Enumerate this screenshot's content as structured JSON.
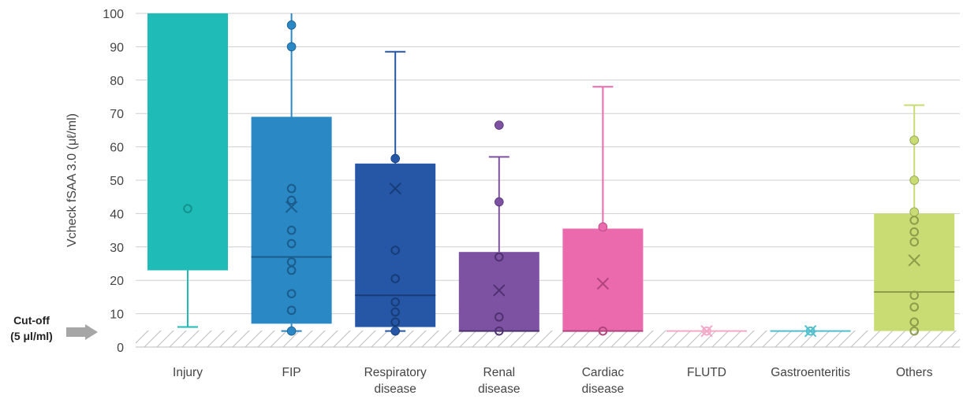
{
  "chart_data": {
    "type": "box",
    "ylabel": "Vcheck fSAA 3.0 (μℓ/ml)",
    "ylim": [
      0,
      100
    ],
    "yticks": [
      0,
      10,
      20,
      30,
      40,
      50,
      60,
      70,
      80,
      90,
      100
    ],
    "grid": true,
    "cutoff": {
      "value": 5,
      "label_line1": "Cut-off",
      "label_line2": "(5 μl/ml)",
      "arrow_color": "#a6a6a6"
    },
    "categories": [
      {
        "label": [
          "Injury"
        ],
        "color": "#1fbbb6",
        "median_color": "#13918d",
        "whisker_low": 6,
        "q1": 23,
        "median": null,
        "q3": 100,
        "whisker_high": null,
        "mean": null,
        "inner_points": [
          41.5
        ],
        "outliers": []
      },
      {
        "label": [
          "FIP"
        ],
        "color": "#2a88c4",
        "median_color": "#1a5c8c",
        "whisker_low": 4.8,
        "q1": 7,
        "median": 27,
        "q3": 69,
        "whisker_high": 100,
        "mean": 42,
        "inner_points": [
          47.5,
          44,
          35,
          31,
          25.5,
          23,
          16,
          11
        ],
        "outliers": [
          96.5,
          90,
          4.8
        ]
      },
      {
        "label": [
          "Respiratory",
          "disease"
        ],
        "color": "#2657a6",
        "median_color": "#173c78",
        "whisker_low": 4.8,
        "q1": 6,
        "median": 15.5,
        "q3": 55,
        "whisker_high": 88.5,
        "mean": 47.5,
        "inner_points": [
          29,
          20.5,
          13.5,
          10.5,
          7.5
        ],
        "outliers": [
          56.5,
          4.8
        ]
      },
      {
        "label": [
          "Renal",
          "disease"
        ],
        "color": "#7e52a3",
        "median_color": "#4f3170",
        "whisker_low": 4.8,
        "q1": 4.8,
        "median": 4.8,
        "q3": 28.5,
        "whisker_high": 57,
        "mean": 17,
        "inner_points": [
          27,
          9,
          4.8
        ],
        "outliers": [
          66.5,
          43.5
        ]
      },
      {
        "label": [
          "Cardiac",
          "disease"
        ],
        "color": "#ea6aad",
        "median_color": "#b0457e",
        "whisker_low": 4.8,
        "q1": 4.8,
        "median": 4.8,
        "q3": 35.5,
        "whisker_high": 78,
        "mean": 19,
        "inner_points": [
          4.8
        ],
        "outliers": [
          36
        ]
      },
      {
        "label": [
          "FLUTD"
        ],
        "color": "#f4a8c9",
        "median_color": "#f4a8c9",
        "whisker_low": 4.8,
        "q1": 4.8,
        "median": 4.8,
        "q3": 4.8,
        "whisker_high": 4.8,
        "mean": 4.8,
        "inner_points": [
          4.8
        ],
        "outliers": []
      },
      {
        "label": [
          "Gastroenteritis"
        ],
        "color": "#4fbfcc",
        "median_color": "#4fbfcc",
        "whisker_low": 4.8,
        "q1": 4.8,
        "median": 4.8,
        "q3": 4.8,
        "whisker_high": 4.8,
        "mean": 4.8,
        "inner_points": [
          4.8
        ],
        "outliers": []
      },
      {
        "label": [
          "Others"
        ],
        "color": "#c8dc73",
        "median_color": "#8c9c4c",
        "whisker_low": 4.8,
        "q1": 4.8,
        "median": 16.5,
        "q3": 40,
        "whisker_high": 72.5,
        "mean": 26,
        "inner_points": [
          38,
          34.5,
          31.5,
          15.5,
          12,
          7.5,
          4.8
        ],
        "outliers": [
          62,
          50,
          40.5
        ]
      }
    ]
  }
}
